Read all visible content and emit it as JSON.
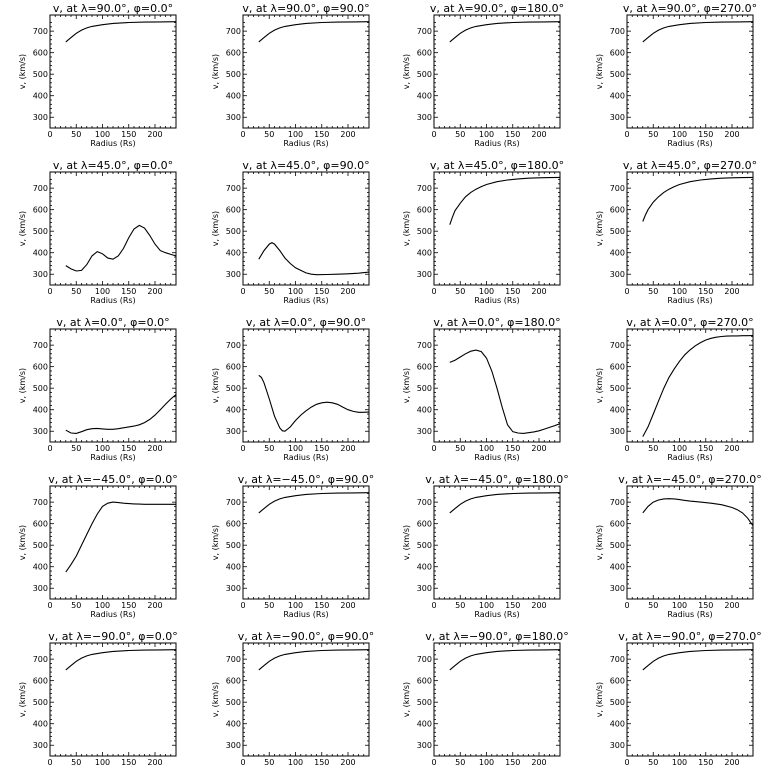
{
  "chart_data": [
    {
      "type": "line",
      "title": "v, at λ=90.0°, φ=0.0°",
      "xlabel": "Radius (Rs)",
      "ylabel": "v, (km/s)",
      "xlim": [
        0,
        240
      ],
      "ylim": [
        250,
        775
      ],
      "xticks": [
        0,
        50,
        100,
        150,
        200
      ],
      "yticks": [
        300,
        400,
        500,
        600,
        700
      ],
      "x": [
        30,
        40,
        50,
        60,
        70,
        80,
        100,
        120,
        150,
        180,
        210,
        240
      ],
      "y": [
        650,
        670,
        690,
        705,
        715,
        722,
        730,
        736,
        740,
        742,
        743,
        744
      ]
    },
    {
      "type": "line",
      "title": "v, at λ=90.0°, φ=90.0°",
      "xlabel": "Radius (Rs)",
      "ylabel": "v, (km/s)",
      "xlim": [
        0,
        240
      ],
      "ylim": [
        250,
        775
      ],
      "xticks": [
        0,
        50,
        100,
        150,
        200
      ],
      "yticks": [
        300,
        400,
        500,
        600,
        700
      ],
      "x": [
        30,
        40,
        50,
        60,
        70,
        80,
        100,
        120,
        150,
        180,
        210,
        240
      ],
      "y": [
        650,
        670,
        690,
        705,
        715,
        722,
        730,
        736,
        740,
        742,
        743,
        744
      ]
    },
    {
      "type": "line",
      "title": "v, at λ=90.0°, φ=180.0°",
      "xlabel": "Radius (Rs)",
      "ylabel": "v, (km/s)",
      "xlim": [
        0,
        240
      ],
      "ylim": [
        250,
        775
      ],
      "xticks": [
        0,
        50,
        100,
        150,
        200
      ],
      "yticks": [
        300,
        400,
        500,
        600,
        700
      ],
      "x": [
        30,
        40,
        50,
        60,
        70,
        80,
        100,
        120,
        150,
        180,
        210,
        240
      ],
      "y": [
        650,
        670,
        690,
        705,
        715,
        722,
        730,
        736,
        740,
        742,
        743,
        744
      ]
    },
    {
      "type": "line",
      "title": "v, at λ=90.0°, φ=270.0°",
      "xlabel": "Radius (Rs)",
      "ylabel": "v, (km/s)",
      "xlim": [
        0,
        240
      ],
      "ylim": [
        250,
        775
      ],
      "xticks": [
        0,
        50,
        100,
        150,
        200
      ],
      "yticks": [
        300,
        400,
        500,
        600,
        700
      ],
      "x": [
        30,
        40,
        50,
        60,
        70,
        80,
        100,
        120,
        150,
        180,
        210,
        240
      ],
      "y": [
        650,
        670,
        690,
        705,
        715,
        722,
        730,
        736,
        740,
        742,
        743,
        744
      ]
    },
    {
      "type": "line",
      "title": "v, at λ=45.0°, φ=0.0°",
      "xlabel": "Radius (Rs)",
      "ylabel": "v, (km/s)",
      "xlim": [
        0,
        240
      ],
      "ylim": [
        250,
        775
      ],
      "xticks": [
        0,
        50,
        100,
        150,
        200
      ],
      "yticks": [
        300,
        400,
        500,
        600,
        700
      ],
      "x": [
        30,
        40,
        50,
        60,
        70,
        80,
        90,
        100,
        110,
        120,
        130,
        140,
        150,
        160,
        170,
        180,
        190,
        200,
        210,
        220,
        230,
        240
      ],
      "y": [
        340,
        325,
        315,
        318,
        345,
        385,
        405,
        395,
        375,
        370,
        385,
        420,
        470,
        510,
        527,
        515,
        480,
        440,
        410,
        400,
        392,
        385
      ]
    },
    {
      "type": "line",
      "title": "v, at λ=45.0°, φ=90.0°",
      "xlabel": "Radius (Rs)",
      "ylabel": "v, (km/s)",
      "xlim": [
        0,
        240
      ],
      "ylim": [
        250,
        775
      ],
      "xticks": [
        0,
        50,
        100,
        150,
        200
      ],
      "yticks": [
        300,
        400,
        500,
        600,
        700
      ],
      "x": [
        30,
        40,
        50,
        55,
        60,
        70,
        80,
        90,
        100,
        110,
        120,
        130,
        140,
        160,
        180,
        200,
        220,
        240
      ],
      "y": [
        370,
        410,
        440,
        447,
        440,
        410,
        375,
        350,
        330,
        318,
        306,
        300,
        298,
        299,
        300,
        302,
        305,
        310
      ]
    },
    {
      "type": "line",
      "title": "v, at λ=45.0°, φ=180.0°",
      "xlabel": "Radius (Rs)",
      "ylabel": "v, (km/s)",
      "xlim": [
        0,
        240
      ],
      "ylim": [
        250,
        775
      ],
      "xticks": [
        0,
        50,
        100,
        150,
        200
      ],
      "yticks": [
        300,
        400,
        500,
        600,
        700
      ],
      "x": [
        30,
        35,
        40,
        50,
        60,
        70,
        80,
        90,
        100,
        120,
        140,
        160,
        180,
        200,
        220,
        240
      ],
      "y": [
        530,
        565,
        595,
        630,
        660,
        680,
        695,
        707,
        717,
        730,
        738,
        743,
        746,
        748,
        749,
        750
      ]
    },
    {
      "type": "line",
      "title": "v, at λ=45.0°, φ=270.0°",
      "xlabel": "Radius (Rs)",
      "ylabel": "v, (km/s)",
      "xlim": [
        0,
        240
      ],
      "ylim": [
        250,
        775
      ],
      "xticks": [
        0,
        50,
        100,
        150,
        200
      ],
      "yticks": [
        300,
        400,
        500,
        600,
        700
      ],
      "x": [
        30,
        35,
        40,
        50,
        60,
        70,
        80,
        90,
        100,
        120,
        140,
        160,
        180,
        200,
        220,
        240
      ],
      "y": [
        545,
        575,
        600,
        635,
        660,
        680,
        695,
        707,
        717,
        730,
        738,
        743,
        746,
        748,
        749,
        750
      ]
    },
    {
      "type": "line",
      "title": "v, at λ=0.0°, φ=0.0°",
      "xlabel": "Radius (Rs)",
      "ylabel": "v, (km/s)",
      "xlim": [
        0,
        240
      ],
      "ylim": [
        250,
        775
      ],
      "xticks": [
        0,
        50,
        100,
        150,
        200
      ],
      "yticks": [
        300,
        400,
        500,
        600,
        700
      ],
      "x": [
        30,
        40,
        50,
        60,
        70,
        80,
        90,
        100,
        110,
        120,
        130,
        140,
        150,
        160,
        170,
        180,
        190,
        200,
        210,
        220,
        230,
        240
      ],
      "y": [
        305,
        292,
        290,
        298,
        307,
        312,
        313,
        311,
        309,
        309,
        312,
        316,
        320,
        324,
        330,
        340,
        355,
        375,
        400,
        425,
        450,
        470
      ]
    },
    {
      "type": "line",
      "title": "v, at λ=0.0°, φ=90.0°",
      "xlabel": "Radius (Rs)",
      "ylabel": "v, (km/s)",
      "xlim": [
        0,
        240
      ],
      "ylim": [
        250,
        775
      ],
      "xticks": [
        0,
        50,
        100,
        150,
        200
      ],
      "yticks": [
        300,
        400,
        500,
        600,
        700
      ],
      "x": [
        30,
        35,
        40,
        50,
        60,
        70,
        75,
        80,
        90,
        100,
        110,
        120,
        130,
        140,
        150,
        160,
        170,
        180,
        190,
        200,
        210,
        220,
        230,
        240
      ],
      "y": [
        560,
        550,
        525,
        450,
        370,
        315,
        302,
        300,
        320,
        350,
        375,
        395,
        412,
        425,
        432,
        435,
        432,
        425,
        412,
        400,
        392,
        388,
        388,
        390
      ]
    },
    {
      "type": "line",
      "title": "v, at λ=0.0°, φ=180.0°",
      "xlabel": "Radius (Rs)",
      "ylabel": "v, (km/s)",
      "xlim": [
        0,
        240
      ],
      "ylim": [
        250,
        775
      ],
      "xticks": [
        0,
        50,
        100,
        150,
        200
      ],
      "yticks": [
        300,
        400,
        500,
        600,
        700
      ],
      "x": [
        30,
        40,
        50,
        60,
        70,
        80,
        90,
        100,
        110,
        120,
        130,
        140,
        150,
        160,
        170,
        180,
        190,
        200,
        210,
        220,
        230,
        240
      ],
      "y": [
        620,
        630,
        645,
        660,
        672,
        677,
        670,
        640,
        580,
        500,
        410,
        330,
        298,
        292,
        290,
        293,
        297,
        302,
        310,
        318,
        326,
        335
      ]
    },
    {
      "type": "line",
      "title": "v, at λ=0.0°, φ=270.0°",
      "xlabel": "Radius (Rs)",
      "ylabel": "v, (km/s)",
      "xlim": [
        0,
        240
      ],
      "ylim": [
        250,
        775
      ],
      "xticks": [
        0,
        50,
        100,
        150,
        200
      ],
      "yticks": [
        300,
        400,
        500,
        600,
        700
      ],
      "x": [
        30,
        40,
        50,
        60,
        70,
        80,
        90,
        100,
        110,
        120,
        130,
        140,
        150,
        160,
        170,
        180,
        190,
        200,
        210,
        220,
        230,
        240
      ],
      "y": [
        275,
        320,
        380,
        440,
        500,
        550,
        590,
        625,
        655,
        678,
        697,
        712,
        724,
        732,
        737,
        740,
        742,
        743,
        743,
        744,
        744,
        745
      ]
    },
    {
      "type": "line",
      "title": "v, at λ=−45.0°, φ=0.0°",
      "xlabel": "Radius (Rs)",
      "ylabel": "v, (km/s)",
      "xlim": [
        0,
        240
      ],
      "ylim": [
        250,
        775
      ],
      "xticks": [
        0,
        50,
        100,
        150,
        200
      ],
      "yticks": [
        300,
        400,
        500,
        600,
        700
      ],
      "x": [
        30,
        40,
        50,
        60,
        70,
        80,
        90,
        100,
        110,
        120,
        130,
        140,
        150,
        160,
        170,
        180,
        190,
        200,
        210,
        220,
        230,
        240
      ],
      "y": [
        375,
        410,
        450,
        500,
        550,
        600,
        645,
        680,
        695,
        700,
        698,
        695,
        693,
        692,
        691,
        690,
        690,
        690,
        690,
        690,
        690,
        690
      ]
    },
    {
      "type": "line",
      "title": "v, at λ=−45.0°, φ=90.0°",
      "xlabel": "Radius (Rs)",
      "ylabel": "v, (km/s)",
      "xlim": [
        0,
        240
      ],
      "ylim": [
        250,
        775
      ],
      "xticks": [
        0,
        50,
        100,
        150,
        200
      ],
      "yticks": [
        300,
        400,
        500,
        600,
        700
      ],
      "x": [
        30,
        40,
        50,
        60,
        70,
        80,
        100,
        120,
        150,
        180,
        210,
        240
      ],
      "y": [
        650,
        670,
        690,
        705,
        715,
        722,
        730,
        736,
        740,
        742,
        743,
        744
      ]
    },
    {
      "type": "line",
      "title": "v, at λ=−45.0°, φ=180.0°",
      "xlabel": "Radius (Rs)",
      "ylabel": "v, (km/s)",
      "xlim": [
        0,
        240
      ],
      "ylim": [
        250,
        775
      ],
      "xticks": [
        0,
        50,
        100,
        150,
        200
      ],
      "yticks": [
        300,
        400,
        500,
        600,
        700
      ],
      "x": [
        30,
        40,
        50,
        60,
        70,
        80,
        100,
        120,
        150,
        180,
        210,
        240
      ],
      "y": [
        650,
        670,
        690,
        705,
        715,
        722,
        730,
        736,
        740,
        742,
        743,
        744
      ]
    },
    {
      "type": "line",
      "title": "v, at λ=−45.0°, φ=270.0°",
      "xlabel": "Radius (Rs)",
      "ylabel": "v, (km/s)",
      "xlim": [
        0,
        240
      ],
      "ylim": [
        250,
        775
      ],
      "xticks": [
        0,
        50,
        100,
        150,
        200
      ],
      "yticks": [
        300,
        400,
        500,
        600,
        700
      ],
      "x": [
        30,
        40,
        50,
        60,
        70,
        80,
        90,
        100,
        110,
        120,
        140,
        160,
        180,
        200,
        210,
        220,
        230,
        240
      ],
      "y": [
        650,
        680,
        700,
        710,
        715,
        716,
        715,
        712,
        708,
        705,
        700,
        695,
        688,
        675,
        665,
        650,
        625,
        590
      ]
    },
    {
      "type": "line",
      "title": "v, at λ=−90.0°, φ=0.0°",
      "xlabel": "Radius (Rs)",
      "ylabel": "v, (km/s)",
      "xlim": [
        0,
        240
      ],
      "ylim": [
        250,
        775
      ],
      "xticks": [
        0,
        50,
        100,
        150,
        200
      ],
      "yticks": [
        300,
        400,
        500,
        600,
        700
      ],
      "x": [
        30,
        40,
        50,
        60,
        70,
        80,
        100,
        120,
        150,
        180,
        210,
        240
      ],
      "y": [
        650,
        670,
        690,
        705,
        715,
        722,
        730,
        736,
        740,
        742,
        743,
        744
      ]
    },
    {
      "type": "line",
      "title": "v, at λ=−90.0°, φ=90.0°",
      "xlabel": "Radius (Rs)",
      "ylabel": "v, (km/s)",
      "xlim": [
        0,
        240
      ],
      "ylim": [
        250,
        775
      ],
      "xticks": [
        0,
        50,
        100,
        150,
        200
      ],
      "yticks": [
        300,
        400,
        500,
        600,
        700
      ],
      "x": [
        30,
        40,
        50,
        60,
        70,
        80,
        100,
        120,
        150,
        180,
        210,
        240
      ],
      "y": [
        650,
        670,
        690,
        705,
        715,
        722,
        730,
        736,
        740,
        742,
        743,
        744
      ]
    },
    {
      "type": "line",
      "title": "v, at λ=−90.0°, φ=180.0°",
      "xlabel": "Radius (Rs)",
      "ylabel": "v, (km/s)",
      "xlim": [
        0,
        240
      ],
      "ylim": [
        250,
        775
      ],
      "xticks": [
        0,
        50,
        100,
        150,
        200
      ],
      "yticks": [
        300,
        400,
        500,
        600,
        700
      ],
      "x": [
        30,
        40,
        50,
        60,
        70,
        80,
        100,
        120,
        150,
        180,
        210,
        240
      ],
      "y": [
        650,
        670,
        690,
        705,
        715,
        722,
        730,
        736,
        740,
        742,
        743,
        744
      ]
    },
    {
      "type": "line",
      "title": "v, at λ=−90.0°, φ=270.0°",
      "xlabel": "Radius (Rs)",
      "ylabel": "v, (km/s)",
      "xlim": [
        0,
        240
      ],
      "ylim": [
        250,
        775
      ],
      "xticks": [
        0,
        50,
        100,
        150,
        200
      ],
      "yticks": [
        300,
        400,
        500,
        600,
        700
      ],
      "x": [
        30,
        40,
        50,
        60,
        70,
        80,
        100,
        120,
        150,
        180,
        210,
        240
      ],
      "y": [
        650,
        670,
        690,
        705,
        715,
        722,
        730,
        736,
        740,
        742,
        743,
        744
      ]
    }
  ]
}
